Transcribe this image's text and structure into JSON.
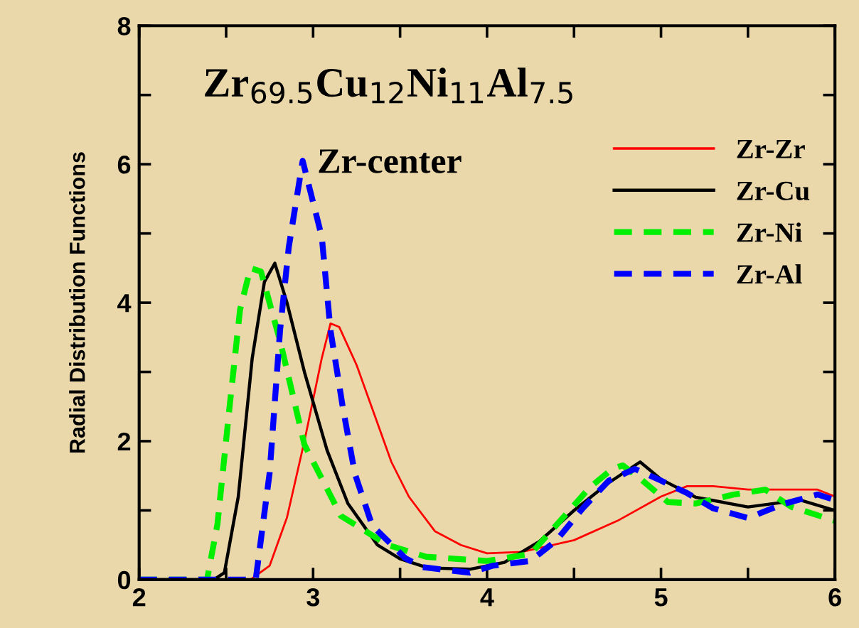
{
  "chart_data": {
    "type": "line",
    "title": "Zr$_{69.5}$Cu$_{12}$Ni$_{11}$Al$_{7.5}$",
    "subtitle": "Zr-center",
    "ylabel": "Radial Distribution Functions",
    "xlim": [
      2,
      6
    ],
    "ylim": [
      0,
      8
    ],
    "xticks": [
      2,
      {
        "value": 2.5,
        "label": null
      },
      3,
      {
        "value": 3.5,
        "label": null
      },
      4,
      {
        "value": 4.5,
        "label": null
      },
      5,
      {
        "value": 5.5,
        "label": null
      },
      6
    ],
    "yticks": [
      0,
      {
        "value": 1,
        "label": null
      },
      2,
      {
        "value": 3,
        "label": null
      },
      4,
      {
        "value": 5,
        "label": null
      },
      6,
      {
        "value": 7,
        "label": null
      },
      8
    ],
    "grid": false,
    "legend": "right",
    "marker": "none",
    "series": [
      {
        "name": "Zr-Zr",
        "color": "#ff0000",
        "line_style": "solid",
        "x": [
          2.0,
          2.64,
          2.75,
          2.85,
          2.95,
          3.05,
          3.1,
          3.15,
          3.25,
          3.35,
          3.45,
          3.55,
          3.7,
          3.85,
          4.0,
          4.2,
          4.5,
          4.75,
          5.0,
          5.15,
          5.3,
          5.5,
          5.75,
          5.9,
          6.0
        ],
        "values": [
          0,
          0,
          0.2,
          0.9,
          2.0,
          3.2,
          3.7,
          3.65,
          3.1,
          2.4,
          1.7,
          1.2,
          0.7,
          0.5,
          0.38,
          0.4,
          0.57,
          0.85,
          1.2,
          1.35,
          1.35,
          1.3,
          1.3,
          1.3,
          1.2
        ]
      },
      {
        "name": "Zr-Cu",
        "color": "#000000",
        "line_style": "solid",
        "x": [
          2.0,
          2.43,
          2.49,
          2.57,
          2.65,
          2.72,
          2.78,
          2.85,
          2.95,
          3.08,
          3.2,
          3.37,
          3.5,
          3.66,
          3.9,
          4.1,
          4.3,
          4.5,
          4.7,
          4.88,
          5.0,
          5.2,
          5.5,
          5.8,
          6.0
        ],
        "values": [
          0,
          0,
          0.1,
          1.2,
          3.2,
          4.3,
          4.57,
          4.0,
          3.0,
          1.87,
          1.1,
          0.5,
          0.3,
          0.17,
          0.15,
          0.25,
          0.55,
          1.0,
          1.4,
          1.7,
          1.45,
          1.19,
          1.05,
          1.15,
          1.0
        ]
      },
      {
        "name": "Zr-Ni",
        "color": "#00ee00",
        "line_style": "dashed",
        "x": [
          2.0,
          2.39,
          2.45,
          2.52,
          2.58,
          2.64,
          2.7,
          2.81,
          2.95,
          3.16,
          3.43,
          3.65,
          4.0,
          4.25,
          4.41,
          4.59,
          4.72,
          4.78,
          4.88,
          5.04,
          5.2,
          5.42,
          5.6,
          5.75,
          6.0
        ],
        "values": [
          0,
          0,
          0.8,
          2.5,
          3.9,
          4.5,
          4.45,
          3.45,
          1.95,
          0.92,
          0.5,
          0.33,
          0.27,
          0.37,
          0.82,
          1.33,
          1.6,
          1.65,
          1.46,
          1.12,
          1.1,
          1.23,
          1.3,
          1.05,
          0.85
        ]
      },
      {
        "name": "Zr-Al",
        "color": "#0000ff",
        "line_style": "dashed",
        "x": [
          2.0,
          2.67,
          2.75,
          2.81,
          2.86,
          2.94,
          3.05,
          3.1,
          3.17,
          3.24,
          3.34,
          3.53,
          3.63,
          3.9,
          4.03,
          4.25,
          4.4,
          4.55,
          4.7,
          4.85,
          5.0,
          5.15,
          5.3,
          5.5,
          5.7,
          5.9,
          6.0
        ],
        "values": [
          0,
          0,
          1.54,
          3.6,
          4.8,
          6.05,
          4.95,
          3.6,
          2.5,
          1.53,
          0.78,
          0.31,
          0.18,
          0.1,
          0.2,
          0.27,
          0.57,
          1.03,
          1.43,
          1.6,
          1.43,
          1.25,
          1.03,
          0.89,
          1.09,
          1.23,
          1.15
        ]
      }
    ]
  }
}
